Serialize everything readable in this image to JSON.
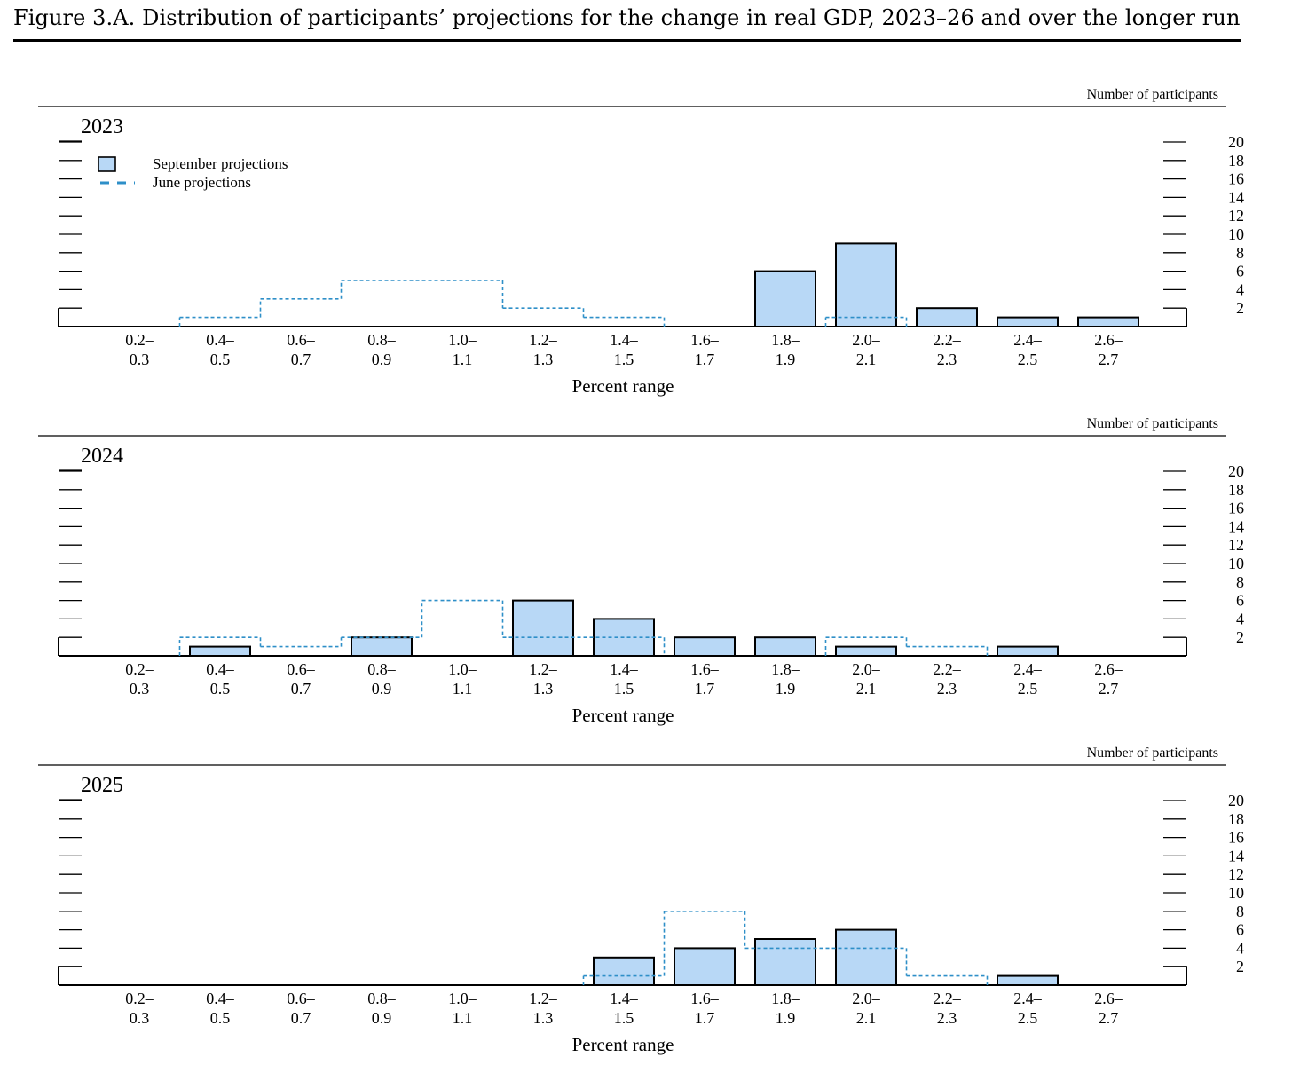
{
  "title": "Figure 3.A. Distribution of participants’ projections for the change in real GDP, 2023–26 and over the longer run",
  "legend": [
    {
      "label": "September projections",
      "style": "filled-bar"
    },
    {
      "label": "June projections",
      "style": "dashed-line"
    }
  ],
  "colors": {
    "bar_fill": "#b8d8f6",
    "bar_stroke": "#000000",
    "june_line": "#2e8fc8"
  },
  "chart_data": [
    {
      "type": "bar",
      "panel_label": "2023",
      "ylabel": "Number of participants",
      "xlabel": "Percent range",
      "categories": [
        "0.2–0.3",
        "0.4–0.5",
        "0.6–0.7",
        "0.8–0.9",
        "1.0–1.1",
        "1.2–1.3",
        "1.4–1.5",
        "1.6–1.7",
        "1.8–1.9",
        "2.0–2.1",
        "2.2–2.3",
        "2.4–2.5",
        "2.6–2.7"
      ],
      "x_tick_labels": [
        [
          "0.2–",
          "0.3"
        ],
        [
          "0.4–",
          "0.5"
        ],
        [
          "0.6–",
          "0.7"
        ],
        [
          "0.8–",
          "0.9"
        ],
        [
          "1.0–",
          "1.1"
        ],
        [
          "1.2–",
          "1.3"
        ],
        [
          "1.4–",
          "1.5"
        ],
        [
          "1.6–",
          "1.7"
        ],
        [
          "1.8–",
          "1.9"
        ],
        [
          "2.0–",
          "2.1"
        ],
        [
          "2.2–",
          "2.3"
        ],
        [
          "2.4–",
          "2.5"
        ],
        [
          "2.6–",
          "2.7"
        ]
      ],
      "series": [
        {
          "name": "September projections",
          "values": [
            0,
            0,
            0,
            0,
            0,
            0,
            0,
            0,
            6,
            9,
            2,
            1,
            1
          ]
        },
        {
          "name": "June projections",
          "values": [
            0,
            1,
            3,
            5,
            5,
            2,
            1,
            0,
            0,
            1,
            0,
            0,
            0
          ]
        }
      ],
      "y_ticks": [
        2,
        4,
        6,
        8,
        10,
        12,
        14,
        16,
        18,
        20
      ],
      "ylim": [
        0,
        20
      ]
    },
    {
      "type": "bar",
      "panel_label": "2024",
      "ylabel": "Number of participants",
      "xlabel": "Percent range",
      "categories": [
        "0.2–0.3",
        "0.4–0.5",
        "0.6–0.7",
        "0.8–0.9",
        "1.0–1.1",
        "1.2–1.3",
        "1.4–1.5",
        "1.6–1.7",
        "1.8–1.9",
        "2.0–2.1",
        "2.2–2.3",
        "2.4–2.5",
        "2.6–2.7"
      ],
      "x_tick_labels": [
        [
          "0.2–",
          "0.3"
        ],
        [
          "0.4–",
          "0.5"
        ],
        [
          "0.6–",
          "0.7"
        ],
        [
          "0.8–",
          "0.9"
        ],
        [
          "1.0–",
          "1.1"
        ],
        [
          "1.2–",
          "1.3"
        ],
        [
          "1.4–",
          "1.5"
        ],
        [
          "1.6–",
          "1.7"
        ],
        [
          "1.8–",
          "1.9"
        ],
        [
          "2.0–",
          "2.1"
        ],
        [
          "2.2–",
          "2.3"
        ],
        [
          "2.4–",
          "2.5"
        ],
        [
          "2.6–",
          "2.7"
        ]
      ],
      "series": [
        {
          "name": "September projections",
          "values": [
            0,
            1,
            0,
            2,
            0,
            6,
            4,
            2,
            2,
            1,
            0,
            1,
            0
          ]
        },
        {
          "name": "June projections",
          "values": [
            0,
            2,
            1,
            2,
            6,
            2,
            2,
            0,
            0,
            2,
            1,
            0,
            0
          ]
        }
      ],
      "y_ticks": [
        2,
        4,
        6,
        8,
        10,
        12,
        14,
        16,
        18,
        20
      ],
      "ylim": [
        0,
        20
      ]
    },
    {
      "type": "bar",
      "panel_label": "2025",
      "ylabel": "Number of participants",
      "xlabel": "Percent range",
      "categories": [
        "0.2–0.3",
        "0.4–0.5",
        "0.6–0.7",
        "0.8–0.9",
        "1.0–1.1",
        "1.2–1.3",
        "1.4–1.5",
        "1.6–1.7",
        "1.8–1.9",
        "2.0–2.1",
        "2.2–2.3",
        "2.4–2.5",
        "2.6–2.7"
      ],
      "x_tick_labels": [
        [
          "0.2–",
          "0.3"
        ],
        [
          "0.4–",
          "0.5"
        ],
        [
          "0.6–",
          "0.7"
        ],
        [
          "0.8–",
          "0.9"
        ],
        [
          "1.0–",
          "1.1"
        ],
        [
          "1.2–",
          "1.3"
        ],
        [
          "1.4–",
          "1.5"
        ],
        [
          "1.6–",
          "1.7"
        ],
        [
          "1.8–",
          "1.9"
        ],
        [
          "2.0–",
          "2.1"
        ],
        [
          "2.2–",
          "2.3"
        ],
        [
          "2.4–",
          "2.5"
        ],
        [
          "2.6–",
          "2.7"
        ]
      ],
      "series": [
        {
          "name": "September projections",
          "values": [
            0,
            0,
            0,
            0,
            0,
            0,
            3,
            4,
            5,
            6,
            0,
            1,
            0
          ]
        },
        {
          "name": "June projections",
          "values": [
            0,
            0,
            0,
            0,
            0,
            0,
            1,
            8,
            4,
            4,
            1,
            0,
            0
          ]
        }
      ],
      "y_ticks": [
        2,
        4,
        6,
        8,
        10,
        12,
        14,
        16,
        18,
        20
      ],
      "ylim": [
        0,
        20
      ]
    }
  ]
}
